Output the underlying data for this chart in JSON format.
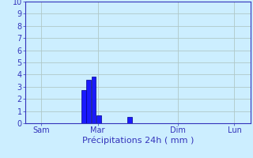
{
  "title": "",
  "xlabel": "Précipitations 24h ( mm )",
  "ylabel": "",
  "background_color": "#cceeff",
  "plot_bg_color": "#cceeff",
  "grid_color": "#b0c8c8",
  "bar_color": "#1a1aff",
  "bar_edge_color": "#00008b",
  "ylim": [
    0,
    10
  ],
  "yticks": [
    0,
    1,
    2,
    3,
    4,
    5,
    6,
    7,
    8,
    9,
    10
  ],
  "xlim": [
    0,
    112
  ],
  "xtick_positions": [
    8,
    36,
    76,
    104
  ],
  "xtick_labels": [
    "Sam",
    "Mar",
    "Dim",
    "Lun"
  ],
  "bar_positions": [
    29,
    31.5,
    34,
    36.5,
    52
  ],
  "bar_heights": [
    2.7,
    3.55,
    3.8,
    0.65,
    0.55
  ],
  "bar_width": 2.3,
  "xlabel_color": "#3333bb",
  "xlabel_fontsize": 8,
  "tick_color": "#3333bb",
  "tick_fontsize": 7,
  "axis_color": "#3333bb",
  "figsize": [
    3.2,
    2.0
  ],
  "dpi": 100
}
